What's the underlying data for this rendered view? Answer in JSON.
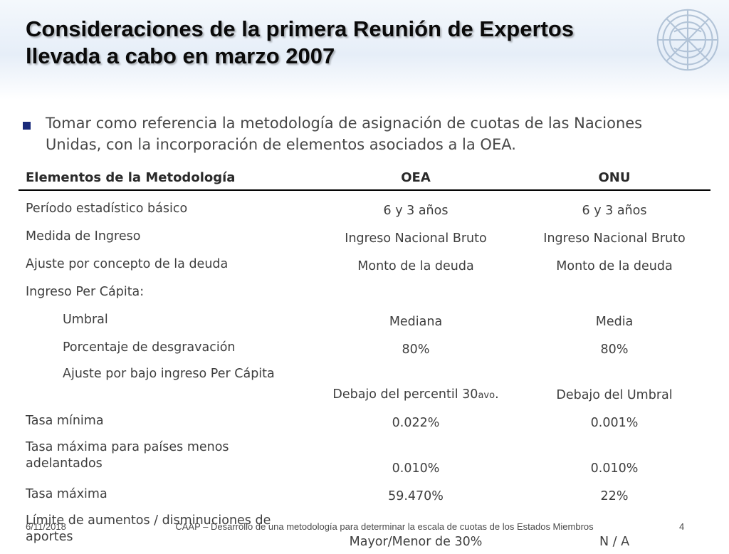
{
  "slide": {
    "title_line1": "Consideraciones de la primera Reunión de Expertos",
    "title_line2": "llevada a cabo en marzo 2007",
    "emblem_icon": "oas-emblem-icon",
    "bullet_text": "Tomar como referencia la metodología de asignación de cuotas de las Naciones Unidas, con la incorporación de elementos asociados a la OEA."
  },
  "table": {
    "headers": [
      "Elementos de la Metodología",
      "OEA",
      "ONU"
    ],
    "rows": [
      {
        "label": "Período estadístico básico",
        "oea": "6 y 3 años",
        "onu": "6 y 3 años"
      },
      {
        "label": "Medida de Ingreso",
        "oea": "Ingreso Nacional Bruto",
        "onu": "Ingreso Nacional Bruto"
      },
      {
        "label": "Ajuste por concepto de la deuda",
        "oea": "Monto de la deuda",
        "onu": "Monto de la deuda"
      },
      {
        "label": "Ingreso Per Cápita:",
        "oea": "",
        "onu": ""
      },
      {
        "label": "Umbral",
        "oea": "Mediana",
        "onu": "Media"
      },
      {
        "label": "Porcentaje de desgravación",
        "oea": "80%",
        "onu": "80%"
      },
      {
        "label": "Ajuste por bajo ingreso Per Cápita",
        "oea": "Debajo del percentil 30",
        "oea_suffix": "avo",
        "oea_end": ".",
        "onu": "Debajo del Umbral"
      },
      {
        "label": "Tasa mínima",
        "oea": "0.022%",
        "onu": "0.001%"
      },
      {
        "label": "Tasa máxima para países menos adelantados",
        "oea": "0.010%",
        "onu": "0.010%"
      },
      {
        "label": "Tasa máxima",
        "oea": "59.470%",
        "onu": "22%"
      },
      {
        "label": "Límite de aumentos / disminuciones de aportes",
        "oea": "Mayor/Menor de 30%",
        "onu": "N / A"
      }
    ]
  },
  "footer": {
    "date": "6/11/2018",
    "text": "CAAP – Desarrollo de una metodología para determinar la escala de cuotas de los Estados Miembros",
    "page": "4"
  },
  "colors": {
    "bullet": "#1a2a7a",
    "header_band": "#e6eef8"
  }
}
